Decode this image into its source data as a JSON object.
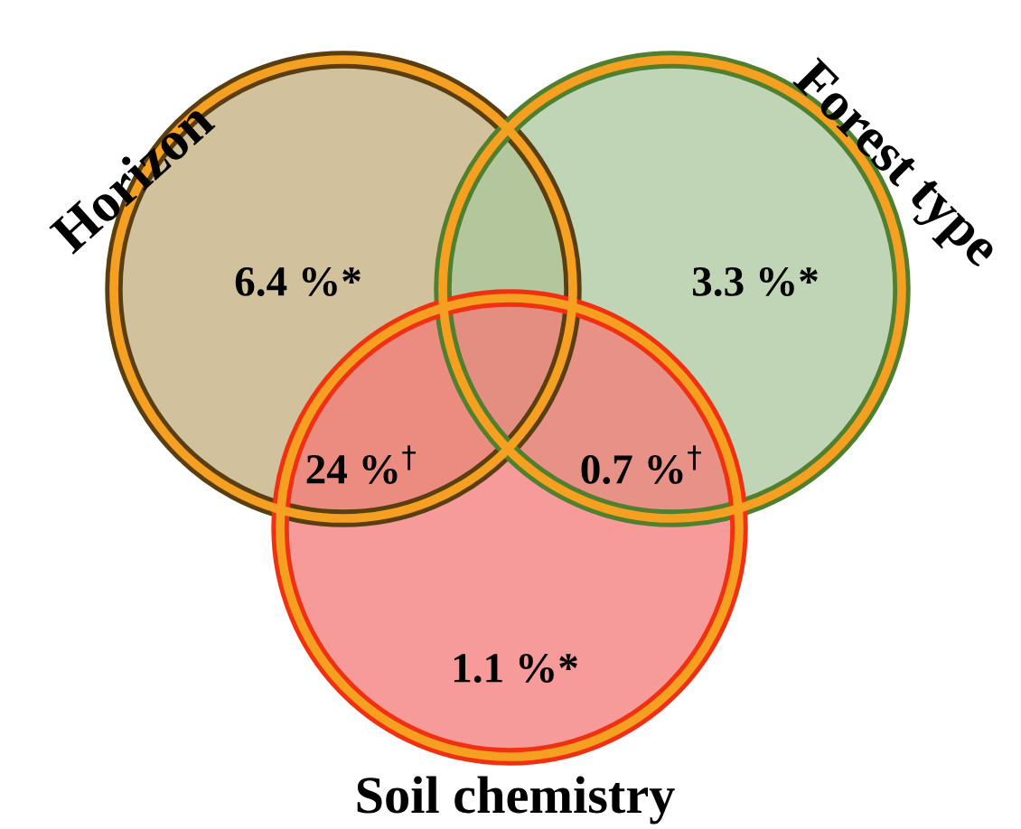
{
  "chart_data": {
    "type": "other",
    "categories": [
      null,
      null,
      null,
      null,
      null
    ],
    "values": [
      6.4,
      3.3,
      24,
      0.7,
      1.1
    ],
    "value_labels": [
      "6.4 %*",
      "3.3 %*",
      "24 %$^{†}$",
      "0.7 %$^{†}$",
      "1.1 %*"
    ],
    "annotations": [
      "Horizon",
      "Forest type",
      "Soil chemistry"
    ]
  }
}
